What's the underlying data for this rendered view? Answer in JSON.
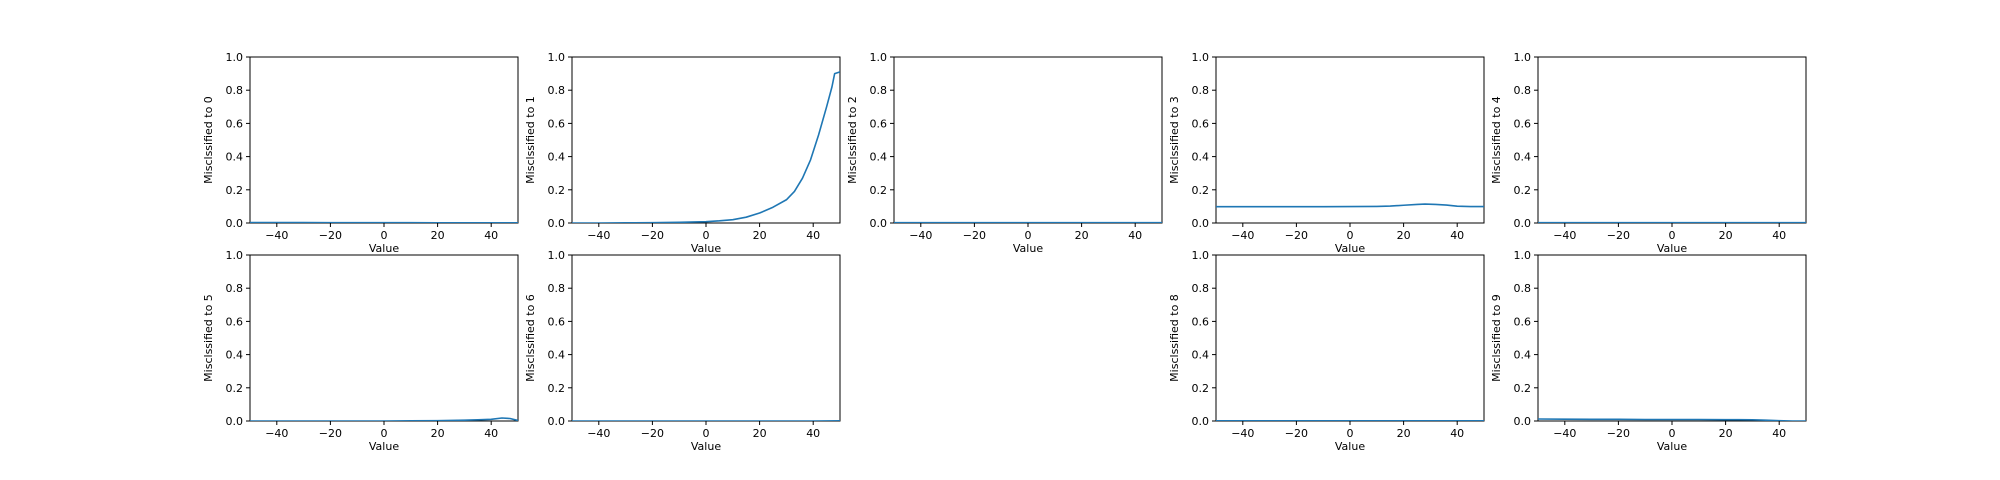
{
  "figure": {
    "line_color": "#1f77b4",
    "background": "#ffffff",
    "axis_color": "#000000"
  },
  "chart_data": [
    {
      "type": "line",
      "xlabel": "Value",
      "ylabel": "Misclssified to 0",
      "xlim": [
        -50,
        50
      ],
      "ylim": [
        0,
        1
      ],
      "xticks": [
        -40,
        -20,
        0,
        20,
        40
      ],
      "yticks": [
        0.0,
        0.2,
        0.4,
        0.6,
        0.8,
        1.0
      ],
      "grid": false,
      "x": [
        -50,
        -40,
        -30,
        -20,
        -10,
        0,
        10,
        20,
        30,
        40,
        50
      ],
      "y": [
        0.003,
        0.003,
        0.003,
        0.002,
        0.002,
        0.002,
        0.002,
        0.001,
        0.001,
        0.001,
        0.001
      ]
    },
    {
      "type": "line",
      "xlabel": "Value",
      "ylabel": "Misclssified to 1",
      "xlim": [
        -50,
        50
      ],
      "ylim": [
        0,
        1
      ],
      "xticks": [
        -40,
        -20,
        0,
        20,
        40
      ],
      "yticks": [
        0.0,
        0.2,
        0.4,
        0.6,
        0.8,
        1.0
      ],
      "grid": false,
      "x": [
        -50,
        -40,
        -30,
        -20,
        -10,
        0,
        5,
        10,
        15,
        20,
        25,
        30,
        33,
        36,
        39,
        42,
        45,
        47,
        48,
        50
      ],
      "y": [
        0.0,
        0.0,
        0.001,
        0.002,
        0.004,
        0.008,
        0.013,
        0.02,
        0.035,
        0.06,
        0.095,
        0.14,
        0.19,
        0.27,
        0.38,
        0.53,
        0.7,
        0.82,
        0.9,
        0.91
      ]
    },
    {
      "type": "line",
      "xlabel": "Value",
      "ylabel": "Misclssified to 2",
      "xlim": [
        -50,
        50
      ],
      "ylim": [
        0,
        1
      ],
      "xticks": [
        -40,
        -20,
        0,
        20,
        40
      ],
      "yticks": [
        0.0,
        0.2,
        0.4,
        0.6,
        0.8,
        1.0
      ],
      "grid": false,
      "x": [
        -50,
        -40,
        -30,
        -20,
        -10,
        0,
        10,
        20,
        30,
        40,
        50
      ],
      "y": [
        0.002,
        0.002,
        0.002,
        0.002,
        0.002,
        0.002,
        0.002,
        0.002,
        0.002,
        0.002,
        0.002
      ]
    },
    {
      "type": "line",
      "xlabel": "Value",
      "ylabel": "Misclssified to 3",
      "xlim": [
        -50,
        50
      ],
      "ylim": [
        0,
        1
      ],
      "xticks": [
        -40,
        -20,
        0,
        20,
        40
      ],
      "yticks": [
        0.0,
        0.2,
        0.4,
        0.6,
        0.8,
        1.0
      ],
      "grid": false,
      "x": [
        -50,
        -40,
        -30,
        -20,
        -10,
        0,
        10,
        15,
        20,
        25,
        28,
        32,
        36,
        40,
        45,
        50
      ],
      "y": [
        0.098,
        0.098,
        0.098,
        0.098,
        0.098,
        0.099,
        0.1,
        0.102,
        0.107,
        0.112,
        0.114,
        0.112,
        0.108,
        0.101,
        0.099,
        0.099
      ]
    },
    {
      "type": "line",
      "xlabel": "Value",
      "ylabel": "Misclssified to 4",
      "xlim": [
        -50,
        50
      ],
      "ylim": [
        0,
        1
      ],
      "xticks": [
        -40,
        -20,
        0,
        20,
        40
      ],
      "yticks": [
        0.0,
        0.2,
        0.4,
        0.6,
        0.8,
        1.0
      ],
      "grid": false,
      "x": [
        -50,
        -40,
        -30,
        -20,
        -10,
        0,
        10,
        20,
        30,
        40,
        50
      ],
      "y": [
        0.002,
        0.002,
        0.002,
        0.002,
        0.002,
        0.002,
        0.002,
        0.002,
        0.002,
        0.002,
        0.002
      ]
    },
    {
      "type": "line",
      "xlabel": "Value",
      "ylabel": "Misclssified to 5",
      "xlim": [
        -50,
        50
      ],
      "ylim": [
        0,
        1
      ],
      "xticks": [
        -40,
        -20,
        0,
        20,
        40
      ],
      "yticks": [
        0.0,
        0.2,
        0.4,
        0.6,
        0.8,
        1.0
      ],
      "grid": false,
      "x": [
        -50,
        -40,
        -30,
        -20,
        -10,
        0,
        10,
        20,
        30,
        35,
        40,
        44,
        47,
        50
      ],
      "y": [
        0.0,
        0.0,
        0.0,
        0.0,
        0.0,
        0.0,
        0.001,
        0.002,
        0.005,
        0.007,
        0.01,
        0.018,
        0.015,
        0.003
      ]
    },
    {
      "type": "line",
      "xlabel": "Value",
      "ylabel": "Misclssified to 6",
      "xlim": [
        -50,
        50
      ],
      "ylim": [
        0,
        1
      ],
      "xticks": [
        -40,
        -20,
        0,
        20,
        40
      ],
      "yticks": [
        0.0,
        0.2,
        0.4,
        0.6,
        0.8,
        1.0
      ],
      "grid": false,
      "x": [
        -50,
        -40,
        -30,
        -20,
        -10,
        0,
        10,
        20,
        30,
        40,
        50
      ],
      "y": [
        0.0,
        0.0,
        0.0,
        0.0,
        0.0,
        0.0,
        0.0,
        0.0,
        0.0,
        0.0,
        0.001
      ]
    },
    {
      "type": "line",
      "xlabel": "Value",
      "ylabel": "Misclssified to 8",
      "xlim": [
        -50,
        50
      ],
      "ylim": [
        0,
        1
      ],
      "xticks": [
        -40,
        -20,
        0,
        20,
        40
      ],
      "yticks": [
        0.0,
        0.2,
        0.4,
        0.6,
        0.8,
        1.0
      ],
      "grid": false,
      "x": [
        -50,
        -40,
        -30,
        -20,
        -10,
        0,
        10,
        20,
        30,
        40,
        50
      ],
      "y": [
        0.001,
        0.001,
        0.001,
        0.001,
        0.001,
        0.001,
        0.001,
        0.001,
        0.001,
        0.001,
        0.001
      ]
    },
    {
      "type": "line",
      "xlabel": "Value",
      "ylabel": "Misclssified to 9",
      "xlim": [
        -50,
        50
      ],
      "ylim": [
        0,
        1
      ],
      "xticks": [
        -40,
        -20,
        0,
        20,
        40
      ],
      "yticks": [
        0.0,
        0.2,
        0.4,
        0.6,
        0.8,
        1.0
      ],
      "grid": false,
      "x": [
        -50,
        -40,
        -30,
        -20,
        -10,
        0,
        10,
        20,
        25,
        30,
        35,
        40,
        45,
        50
      ],
      "y": [
        0.012,
        0.011,
        0.01,
        0.01,
        0.009,
        0.009,
        0.009,
        0.008,
        0.008,
        0.007,
        0.005,
        0.002,
        0.0,
        0.0
      ]
    }
  ]
}
